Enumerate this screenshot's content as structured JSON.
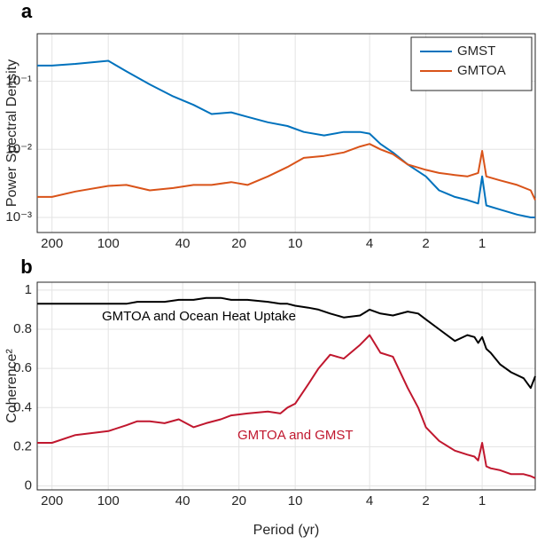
{
  "chart_data": [
    {
      "type": "line",
      "panel_label": "a",
      "ylabel": "Power Spectral Density",
      "log_x": true,
      "log_y": true,
      "grid": true,
      "legend": "upper right",
      "xlim": [
        240,
        0.52
      ],
      "xticks": [
        200,
        100,
        40,
        20,
        10,
        4,
        2,
        1
      ],
      "ylim": [
        0.0006,
        0.5
      ],
      "yticks": [
        {
          "value": 0.001,
          "label": "10⁻³"
        },
        {
          "value": 0.01,
          "label": "10⁻²"
        },
        {
          "value": 0.1,
          "label": "10⁻¹"
        }
      ],
      "x": [
        240,
        200,
        150,
        100,
        80,
        60,
        45,
        35,
        28,
        22,
        18,
        14,
        11,
        9,
        7,
        5.5,
        4.5,
        4,
        3.5,
        3,
        2.5,
        2,
        1.7,
        1.4,
        1.2,
        1.05,
        1,
        0.95,
        0.8,
        0.65,
        0.55,
        0.52
      ],
      "series": [
        {
          "name": "GMST",
          "color": "#0072bd",
          "values": [
            0.17,
            0.17,
            0.18,
            0.2,
            0.14,
            0.09,
            0.06,
            0.045,
            0.033,
            0.035,
            0.03,
            0.025,
            0.022,
            0.018,
            0.016,
            0.018,
            0.018,
            0.017,
            0.012,
            0.009,
            0.006,
            0.004,
            0.0025,
            0.002,
            0.0018,
            0.0016,
            0.004,
            0.0015,
            0.0013,
            0.0011,
            0.001,
            0.001
          ]
        },
        {
          "name": "GMTOA",
          "color": "#d95319",
          "values": [
            0.002,
            0.002,
            0.0024,
            0.0029,
            0.003,
            0.0025,
            0.0027,
            0.003,
            0.003,
            0.0033,
            0.003,
            0.004,
            0.0055,
            0.0075,
            0.008,
            0.009,
            0.011,
            0.012,
            0.01,
            0.0085,
            0.006,
            0.005,
            0.0045,
            0.0042,
            0.004,
            0.0045,
            0.0095,
            0.004,
            0.0035,
            0.003,
            0.0025,
            0.0018
          ]
        }
      ]
    },
    {
      "type": "line",
      "panel_label": "b",
      "ylabel": "Coherence²",
      "xlabel": "Period (yr)",
      "log_x": true,
      "log_y": false,
      "grid": true,
      "xlim": [
        240,
        0.52
      ],
      "xticks": [
        200,
        100,
        40,
        20,
        10,
        4,
        2,
        1
      ],
      "ylim": [
        -0.02,
        1.04
      ],
      "yticks": [
        0,
        0.2,
        0.4,
        0.6,
        0.8,
        1
      ],
      "x": [
        240,
        200,
        150,
        100,
        80,
        70,
        60,
        50,
        42,
        35,
        30,
        25,
        22,
        18,
        14,
        12,
        11,
        10,
        8.5,
        7.5,
        6.5,
        5.5,
        4.5,
        4,
        3.5,
        3,
        2.5,
        2.2,
        2,
        1.7,
        1.4,
        1.2,
        1.1,
        1.05,
        1,
        0.95,
        0.9,
        0.8,
        0.7,
        0.6,
        0.55,
        0.52
      ],
      "series": [
        {
          "name": "GMTOA and Ocean Heat Uptake",
          "color": "#000000",
          "values": [
            0.93,
            0.93,
            0.93,
            0.93,
            0.93,
            0.94,
            0.94,
            0.94,
            0.95,
            0.95,
            0.96,
            0.96,
            0.95,
            0.95,
            0.94,
            0.93,
            0.93,
            0.92,
            0.91,
            0.9,
            0.88,
            0.86,
            0.87,
            0.9,
            0.88,
            0.87,
            0.89,
            0.88,
            0.85,
            0.8,
            0.74,
            0.77,
            0.76,
            0.73,
            0.76,
            0.7,
            0.68,
            0.62,
            0.58,
            0.55,
            0.5,
            0.56
          ]
        },
        {
          "name": "GMTOA and GMST",
          "color": "#c0172e",
          "values": [
            0.22,
            0.22,
            0.26,
            0.28,
            0.31,
            0.33,
            0.33,
            0.32,
            0.34,
            0.3,
            0.32,
            0.34,
            0.36,
            0.37,
            0.38,
            0.37,
            0.4,
            0.42,
            0.52,
            0.6,
            0.67,
            0.65,
            0.72,
            0.77,
            0.68,
            0.66,
            0.5,
            0.4,
            0.3,
            0.23,
            0.18,
            0.16,
            0.15,
            0.13,
            0.22,
            0.1,
            0.09,
            0.08,
            0.06,
            0.06,
            0.05,
            0.04
          ]
        }
      ]
    }
  ]
}
